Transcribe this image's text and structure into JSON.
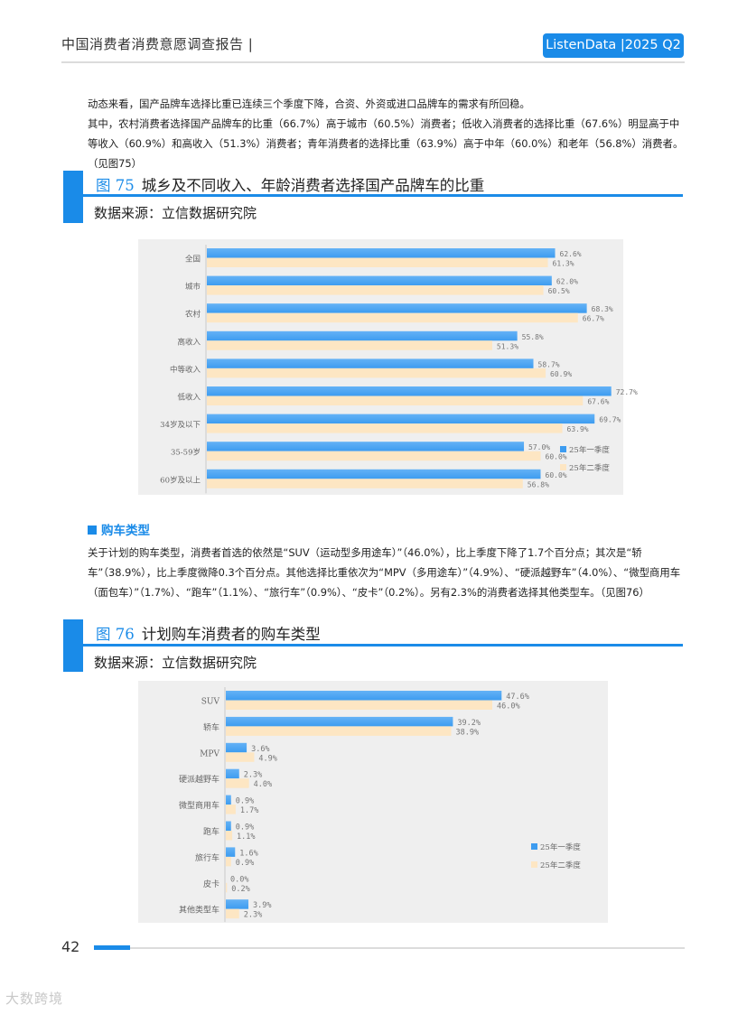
{
  "header": {
    "title": "中国消费者消费意愿调查报告 |",
    "badge": "ListenData |2025 Q2"
  },
  "para1": "动态来看，国产品牌车选择比重已连续三个季度下降，合资、外资或进口品牌车的需求有所回稳。",
  "para2": "其中，农村消费者选择国产品牌车的比重（66.7%）高于城市（60.5%）消费者；低收入消费者的选择比重（67.6%）明显高于中等收入（60.9%）和高收入（51.3%）消费者；青年消费者的选择比重（63.9%）高于中年（60.0%）和老年（56.8%）消费者。（见图75）",
  "fig75": {
    "num": "图 75",
    "title": "城乡及不同收入、年龄消费者选择国产品牌车的比重",
    "source": "数据来源：立信数据研究院"
  },
  "section": {
    "heading": "购车类型"
  },
  "para3": "关于计划的购车类型，消费者首选的依然是“SUV（运动型多用途车）”（46.0%），比上季度下降了1.7个百分点；其次是“轿车”（38.9%），比上季度微降0.3个百分点。其他选择比重依次为“MPV（多用途车）”（4.9%）、“硬派越野车”（4.0%）、“微型商用车（面包车）”（1.7%）、“跑车”（1.1%）、“旅行车”（0.9%）、“皮卡”（0.2%）。另有2.3%的消费者选择其他类型车。（见图76）",
  "fig76": {
    "num": "图 76",
    "title": "计划购车消费者的购车类型",
    "source": "数据来源：立信数据研究院"
  },
  "footer": {
    "page": "42",
    "watermark": "大数跨境"
  },
  "colors": {
    "accent": "#1a8be8",
    "series1": "#3d9cf0",
    "series2": "#fde6c3",
    "panel": "#efefef"
  },
  "chart_data": [
    {
      "type": "bar",
      "orientation": "horizontal",
      "categories": [
        "全国",
        "城市",
        "农村",
        "高收入",
        "中等收入",
        "低收入",
        "34岁及以下",
        "35-59岁",
        "60岁及以上"
      ],
      "series": [
        {
          "name": "25年一季度",
          "values": [
            62.6,
            62.0,
            68.3,
            55.8,
            58.7,
            72.7,
            69.7,
            57.0,
            60.0
          ],
          "labels": [
            "62.6%",
            "62.0%",
            "68.3%",
            "55.8%",
            "58.7%",
            "72.7%",
            "69.7%",
            "57.0%",
            "60.0%"
          ]
        },
        {
          "name": "25年二季度",
          "values": [
            61.3,
            60.5,
            66.7,
            51.3,
            60.9,
            67.6,
            63.9,
            60.0,
            56.8
          ],
          "labels": [
            "61.3%",
            "60.5%",
            "66.7%",
            "51.3%",
            "60.9%",
            "67.6%",
            "63.9%",
            "60.0%",
            "56.8%"
          ]
        }
      ],
      "xlim": [
        0,
        82
      ],
      "legend": "bottom-right"
    },
    {
      "type": "bar",
      "orientation": "horizontal",
      "categories": [
        "SUV",
        "轿车",
        "MPV",
        "硬派越野车",
        "微型商用车",
        "跑车",
        "旅行车",
        "皮卡",
        "其他类型车"
      ],
      "series": [
        {
          "name": "25年一季度",
          "values": [
            47.6,
            39.2,
            3.6,
            2.3,
            0.9,
            0.9,
            1.6,
            0.0,
            3.9
          ],
          "labels": [
            "47.6%",
            "39.2%",
            "3.6%",
            "2.3%",
            "0.9%",
            "0.9%",
            "1.6%",
            "0.0%",
            "3.9%"
          ]
        },
        {
          "name": "25年二季度",
          "values": [
            46.0,
            38.9,
            4.9,
            4.0,
            1.7,
            1.1,
            0.9,
            0.2,
            2.3
          ],
          "labels": [
            "46.0%",
            "38.9%",
            "4.9%",
            "4.0%",
            "1.7%",
            "1.1%",
            "0.9%",
            "0.2%",
            "2.3%"
          ]
        }
      ],
      "xlim": [
        0,
        58
      ],
      "legend": "bottom-right"
    }
  ]
}
